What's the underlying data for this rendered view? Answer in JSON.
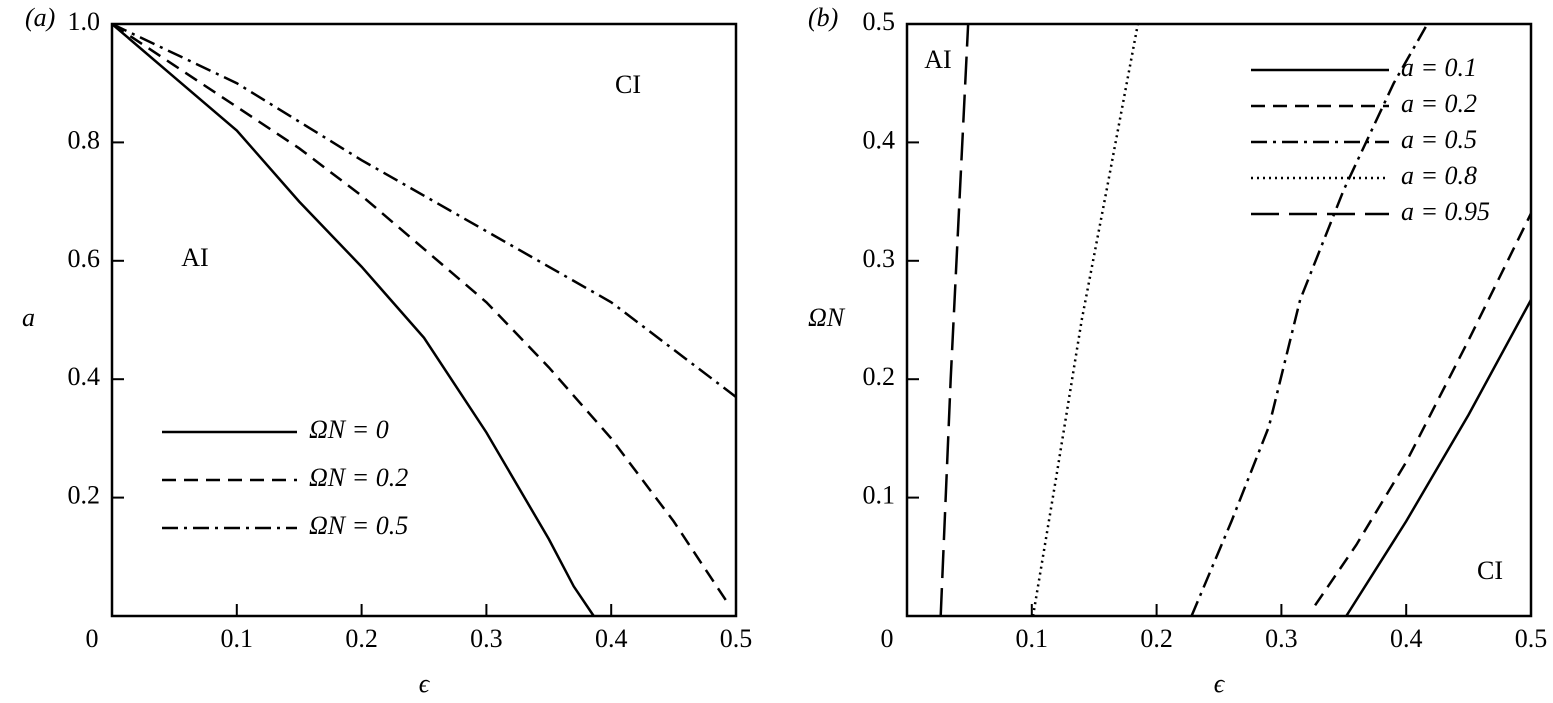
{
  "chart_data": [
    {
      "type": "line",
      "panel_label": "(a)",
      "x_label": "ϵ",
      "y_label": "a",
      "xlim": [
        0,
        0.5
      ],
      "ylim": [
        0,
        1
      ],
      "xticks": [
        0,
        0.1,
        0.2,
        0.3,
        0.4,
        0.5
      ],
      "yticks": [
        0.2,
        0.4,
        0.6,
        0.8,
        {
          "value": 1,
          "label": "1.0"
        }
      ],
      "legend": "lower left",
      "annotations": [
        "AI",
        "CI"
      ],
      "series": [
        {
          "name": "ΩN = 0",
          "color": "#000000",
          "style": "solid",
          "x": [
            0,
            0.05,
            0.1,
            0.15,
            0.2,
            0.25,
            0.3,
            0.35,
            0.37,
            0.386
          ],
          "values": [
            1,
            0.91,
            0.82,
            0.7,
            0.59,
            0.47,
            0.31,
            0.13,
            0.05,
            0
          ]
        },
        {
          "name": "ΩN = 0.2",
          "color": "#000000",
          "style": "dashed",
          "x": [
            0,
            0.05,
            0.1,
            0.15,
            0.2,
            0.25,
            0.3,
            0.35,
            0.4,
            0.45,
            0.494
          ],
          "values": [
            1,
            0.93,
            0.86,
            0.79,
            0.71,
            0.62,
            0.53,
            0.42,
            0.3,
            0.16,
            0.02
          ]
        },
        {
          "name": "ΩN = 0.5",
          "color": "#000000",
          "style": "dashdot",
          "x": [
            0,
            0.1,
            0.2,
            0.3,
            0.4,
            0.5
          ],
          "values": [
            1,
            0.9,
            0.77,
            0.65,
            0.53,
            0.37
          ]
        }
      ]
    },
    {
      "type": "line",
      "panel_label": "(b)",
      "x_label": "ϵ",
      "y_label": "ΩN",
      "xlim": [
        0,
        0.5
      ],
      "ylim": [
        0,
        0.5
      ],
      "xticks": [
        0,
        0.1,
        0.2,
        0.3,
        0.4,
        0.5
      ],
      "yticks": [
        0.1,
        0.2,
        0.3,
        0.4,
        0.5
      ],
      "legend": "upper right",
      "annotations": [
        "AI",
        "CI"
      ],
      "series": [
        {
          "name": "a = 0.1",
          "color": "#000000",
          "style": "solid",
          "x": [
            0.352,
            0.4,
            0.45,
            0.5
          ],
          "values": [
            0,
            0.08,
            0.17,
            0.267
          ]
        },
        {
          "name": "a = 0.2",
          "color": "#000000",
          "style": "dashed",
          "x": [
            0.327,
            0.36,
            0.4,
            0.45,
            0.5
          ],
          "values": [
            0.009,
            0.06,
            0.13,
            0.233,
            0.34
          ]
        },
        {
          "name": "a = 0.5",
          "color": "#000000",
          "style": "dashdot",
          "x": [
            0.228,
            0.26,
            0.29,
            0.315,
            0.35,
            0.39,
            0.417
          ],
          "values": [
            0,
            0.08,
            0.16,
            0.267,
            0.36,
            0.45,
            0.5
          ]
        },
        {
          "name": "a = 0.8",
          "color": "#000000",
          "style": "dotted",
          "x": [
            0.101,
            0.12,
            0.14,
            0.16,
            0.185
          ],
          "values": [
            0,
            0.12,
            0.25,
            0.36,
            0.5
          ]
        },
        {
          "name": "a = 0.95",
          "color": "#000000",
          "style": "longdash",
          "x": [
            0.027,
            0.035,
            0.042,
            0.049
          ],
          "values": [
            0,
            0.2,
            0.35,
            0.5
          ]
        }
      ]
    }
  ]
}
